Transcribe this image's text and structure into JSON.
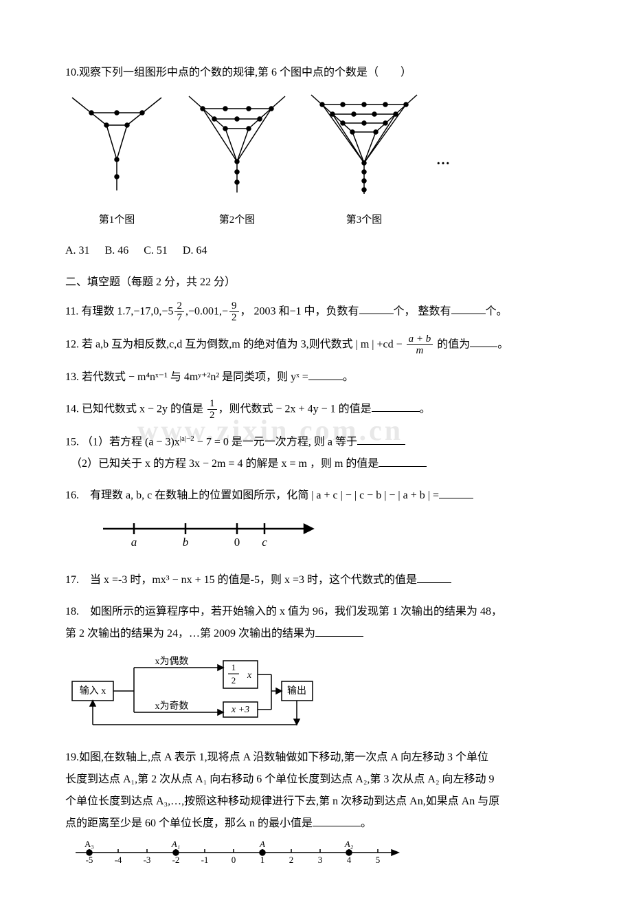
{
  "q10": {
    "prompt": "10.观察下列一组图形中点的个数的规律,第 6 个图中点的个数是（　　）",
    "figLabels": [
      "第1个图",
      "第2个图",
      "第3个图"
    ],
    "ellipsis": "…",
    "choices": {
      "A": "A. 31",
      "B": "B. 46",
      "C": "C. 51",
      "D": "D. 64"
    }
  },
  "section2": "二、填空题（每题 2 分，共 22 分）",
  "q11": {
    "pre": "11. 有理数 1.7,−17,0,−5",
    "f1n": "2",
    "f1d": "7",
    "mid1": ",−0.001,−",
    "f2n": "9",
    "f2d": "2",
    "mid2": "， 2003 和−1 中，负数有",
    "mid3": "个， 整数有",
    "tail": "个。"
  },
  "q12": {
    "pre": "12. 若 a,b 互为相反数,c,d 互为倒数,m 的绝对值为 3,则代数式 | m | +cd − ",
    "fn": "a + b",
    "fd": "m",
    "tail": " 的值为",
    "end": "。"
  },
  "q13": {
    "txt": "13. 若代数式 − m⁴nˣ⁻¹ 与 4mʸ⁺²n² 是同类项，则 yˣ =",
    "end": "。"
  },
  "q14": {
    "pre": "14. 已知代数式 x − 2y 的值是 ",
    "fn": "1",
    "fd": "2",
    "mid": "，则代数式 − 2x + 4y − 1 的值是",
    "end": "。"
  },
  "q15": {
    "p1a": "15. （1）若方程 (a − 3)x",
    "exp": "|a|−2",
    "p1b": " − 7 = 0 是一元一次方程, 则 a 等于",
    "p2": "（2）已知关于 x 的方程 3x − 2m = 4 的解是 x = m ，则 m 的值是"
  },
  "q16": {
    "pre": "16.　有理数 a, b, c 在数轴上的位置如图所示，化简 | a + c | − | c − b | − | a + b | =",
    "labels": {
      "a": "a",
      "b": "b",
      "zero": "0",
      "c": "c"
    }
  },
  "q17": {
    "txt": "17.　当 x =-3 时，mx³ − nx + 15 的值是-5，则 x =3 时，这个代数式的值是"
  },
  "q18": {
    "l1": "18.　如图所示的运算程序中，若开始输入的 x 值为 96，我们发现第 1 次输出的结果为 48，",
    "l2": "第 2 次输出的结果为 24，…第 2009 次输出的结果为",
    "boxes": {
      "input": "输入 x",
      "even": "x为偶数",
      "odd": "x为奇数",
      "halfn": "1",
      "halfd": "2",
      "halfx": " x",
      "plus3": "x +3",
      "out": "输出"
    }
  },
  "q19": {
    "l1": "19.如图,在数轴上,点 A 表示 1,现将点 A 沿数轴做如下移动,第一次点 A 向左移动 3 个单位",
    "l2": "长度到达点 A₁,第 2 次从点 A₁ 向右移动 6 个单位长度到达点 A₂,第 3 次从点 A₂ 向左移动 9",
    "l3": "个单位长度到达点 A₃,…,按照这种移动规律进行下去,第 n 次移动到达点 An,如果点 An 与原",
    "l4a": "点的距离至少是 60 个单位长度，那么 n 的最小值是",
    "l4b": "。",
    "nl": {
      "pts": [
        "-5",
        "-4",
        "-3",
        "-2",
        "-1",
        "0",
        "1",
        "2",
        "3",
        "4",
        "5"
      ],
      "A3": "A₃",
      "A1": "A₁",
      "A": "A",
      "A2": "A₂"
    }
  },
  "colors": {
    "text": "#000000",
    "bg": "#ffffff",
    "watermark": "#e8e8e8",
    "stroke": "#000000"
  },
  "watermark": "www.zixin.com.cn"
}
